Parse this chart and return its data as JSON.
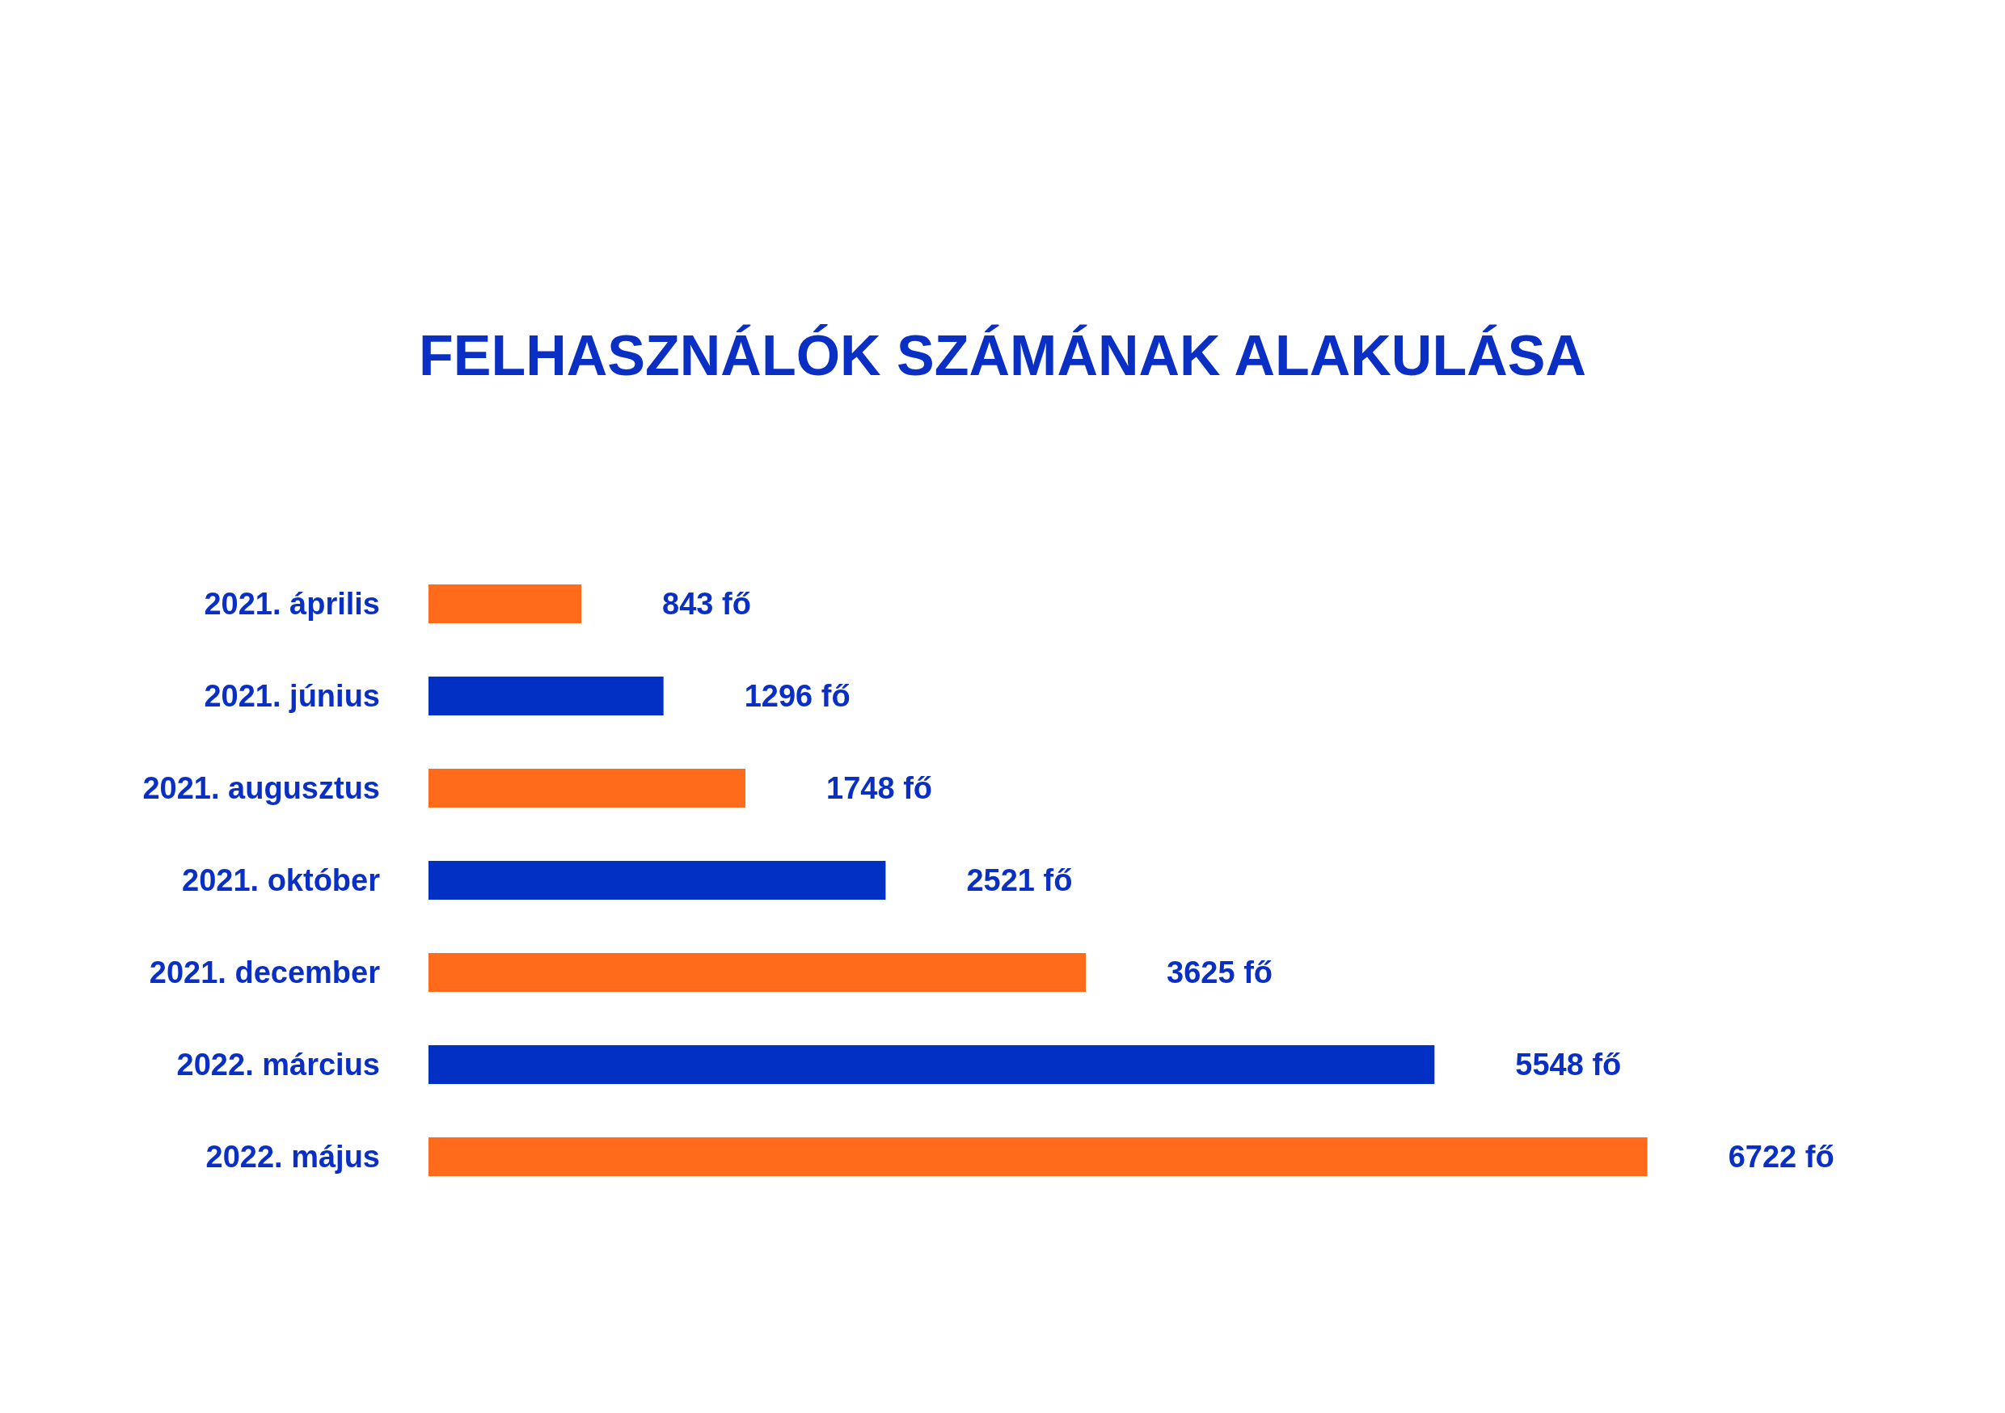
{
  "chart_data": {
    "type": "bar",
    "orientation": "horizontal",
    "title": "FELHASZNÁLÓK SZÁMÁNAK ALAKULÁSA",
    "categories": [
      "2021. április",
      "2021. június",
      "2021. augusztus",
      "2021. október",
      "2021. december",
      "2022. március",
      "2022. május"
    ],
    "values": [
      843,
      1296,
      1748,
      2521,
      3625,
      5548,
      6722
    ],
    "value_labels": [
      "843 fő",
      "1296 fő",
      "1748 fő",
      "2521 fő",
      "3625 fő",
      "5548 fő",
      "6722 fő"
    ],
    "colors": [
      "#ff6b1a",
      "#022fc4",
      "#ff6b1a",
      "#022fc4",
      "#ff6b1a",
      "#022fc4",
      "#ff6b1a"
    ],
    "tick_labels": "y"
  }
}
